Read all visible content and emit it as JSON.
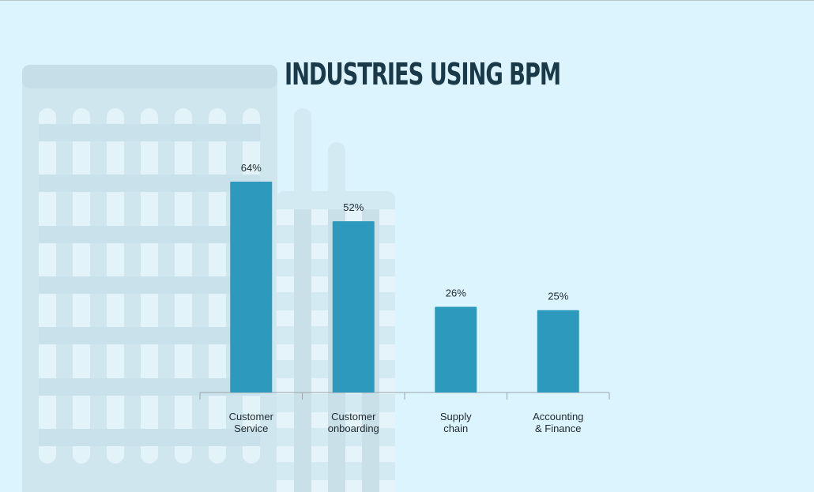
{
  "title": "INDUSTRIES USING BPM",
  "colors": {
    "background": "#dcf4fd",
    "bar": "#2d9abd",
    "title": "#1a3a4a",
    "axis": "#9aa6ab"
  },
  "chart_data": {
    "type": "bar",
    "title": "INDUSTRIES USING BPM",
    "categories": [
      "Customer Service",
      "Customer onboarding",
      "Supply chain",
      "Accounting & Finance"
    ],
    "category_lines": [
      [
        "Customer",
        "Service"
      ],
      [
        "Customer",
        "onboarding"
      ],
      [
        "Supply",
        "chain"
      ],
      [
        "Accounting",
        "& Finance"
      ]
    ],
    "values": [
      64,
      52,
      26,
      25
    ],
    "value_labels": [
      "64%",
      "52%",
      "26%",
      "25%"
    ],
    "xlabel": "",
    "ylabel": "",
    "ylim": [
      0,
      100
    ],
    "grid": false,
    "legend": "none"
  }
}
